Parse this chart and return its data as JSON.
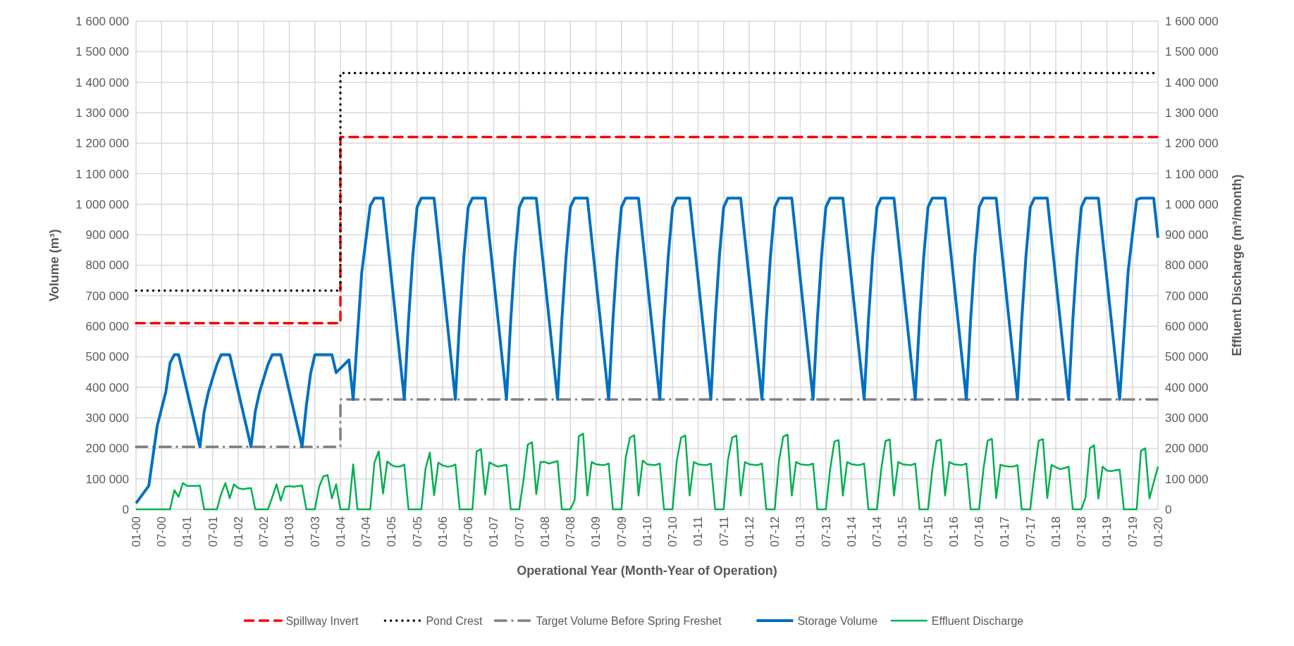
{
  "chart_data": {
    "type": "line",
    "xlabel": "Operational Year (Month-Year of Operation)",
    "ylabel": "Volume (m³)",
    "y2label": "Effluent Discharge (m³/month)",
    "categories": [
      "01-00",
      null,
      null,
      null,
      null,
      null,
      "07-00",
      null,
      null,
      null,
      null,
      null,
      "01-01",
      null,
      null,
      null,
      null,
      null,
      "07-01",
      null,
      null,
      null,
      null,
      null,
      "01-02",
      null,
      null,
      null,
      null,
      null,
      "07-02",
      null,
      null,
      null,
      null,
      null,
      "01-03",
      null,
      null,
      null,
      null,
      null,
      "07-03",
      null,
      null,
      null,
      null,
      null,
      "01-04",
      null,
      null,
      null,
      null,
      null,
      "07-04",
      null,
      null,
      null,
      null,
      null,
      "01-05",
      null,
      null,
      null,
      null,
      null,
      "07-05",
      null,
      null,
      null,
      null,
      null,
      "01-06",
      null,
      null,
      null,
      null,
      null,
      "07-06",
      null,
      null,
      null,
      null,
      null,
      "01-07",
      null,
      null,
      null,
      null,
      null,
      "07-07",
      null,
      null,
      null,
      null,
      null,
      "01-08",
      null,
      null,
      null,
      null,
      null,
      "07-08",
      null,
      null,
      null,
      null,
      null,
      "01-09",
      null,
      null,
      null,
      null,
      null,
      "07-09",
      null,
      null,
      null,
      null,
      null,
      "01-10",
      null,
      null,
      null,
      null,
      null,
      "07-10",
      null,
      null,
      null,
      null,
      null,
      "01-11",
      null,
      null,
      null,
      null,
      null,
      "07-11",
      null,
      null,
      null,
      null,
      null,
      "01-12",
      null,
      null,
      null,
      null,
      null,
      "07-12",
      null,
      null,
      null,
      null,
      null,
      "01-13",
      null,
      null,
      null,
      null,
      null,
      "07-13",
      null,
      null,
      null,
      null,
      null,
      "01-14",
      null,
      null,
      null,
      null,
      null,
      "07-14",
      null,
      null,
      null,
      null,
      null,
      "01-15",
      null,
      null,
      null,
      null,
      null,
      "07-15",
      null,
      null,
      null,
      null,
      null,
      "01-16",
      null,
      null,
      null,
      null,
      null,
      "07-16",
      null,
      null,
      null,
      null,
      null,
      "01-17",
      null,
      null,
      null,
      null,
      null,
      "07-17",
      null,
      null,
      null,
      null,
      null,
      "01-18",
      null,
      null,
      null,
      null,
      null,
      "07-18",
      null,
      null,
      null,
      null,
      null,
      "01-19",
      null,
      null,
      null,
      null,
      null,
      "07-19",
      null,
      null,
      null,
      null,
      null,
      "01-20"
    ],
    "ylim": [
      0,
      1600000
    ],
    "yticks": [
      0,
      {
        "value": 100000,
        "label": "100 000"
      },
      {
        "value": 200000,
        "label": "200 000"
      },
      {
        "value": 300000,
        "label": "300 000"
      },
      {
        "value": 400000,
        "label": "400 000"
      },
      {
        "value": 500000,
        "label": "500 000"
      },
      {
        "value": 600000,
        "label": "600 000"
      },
      {
        "value": 700000,
        "label": "700 000"
      },
      {
        "value": 800000,
        "label": "800 000"
      },
      {
        "value": 900000,
        "label": "900 000"
      },
      {
        "value": 1000000,
        "label": "1 000 000"
      },
      {
        "value": 1100000,
        "label": "1 100 000"
      },
      {
        "value": 1200000,
        "label": "1 200 000"
      },
      {
        "value": 1300000,
        "label": "1 300 000"
      },
      {
        "value": 1400000,
        "label": "1 400 000"
      },
      {
        "value": 1500000,
        "label": "1 500 000"
      },
      {
        "value": 1600000,
        "label": "1 600 000"
      }
    ],
    "y2lim": [
      0,
      1600000
    ],
    "y2ticks": [
      0,
      {
        "value": 100000,
        "label": "100 000"
      },
      {
        "value": 200000,
        "label": "200 000"
      },
      {
        "value": 300000,
        "label": "300 000"
      },
      {
        "value": 400000,
        "label": "400 000"
      },
      {
        "value": 500000,
        "label": "500 000"
      },
      {
        "value": 600000,
        "label": "600 000"
      },
      {
        "value": 700000,
        "label": "700 000"
      },
      {
        "value": 800000,
        "label": "800 000"
      },
      {
        "value": 900000,
        "label": "900 000"
      },
      {
        "value": 1000000,
        "label": "1 000 000"
      },
      {
        "value": 1100000,
        "label": "1 100 000"
      },
      {
        "value": 1200000,
        "label": "1 200 000"
      },
      {
        "value": 1300000,
        "label": "1 300 000"
      },
      {
        "value": 1400000,
        "label": "1 400 000"
      },
      {
        "value": 1500000,
        "label": "1 500 000"
      },
      {
        "value": 1600000,
        "label": "1 600 000"
      }
    ],
    "grid": true,
    "legend": "bottom",
    "series": [
      {
        "name": "Spillway Invert",
        "color": "#ff0000",
        "line_style": "dashed",
        "x": [
          "01-00",
          "01-04",
          "01-04",
          "01-20"
        ],
        "values": [
          610000,
          610000,
          1220000,
          1220000
        ]
      },
      {
        "name": "Pond Crest",
        "color": "#000000",
        "line_style": "dotted",
        "x": [
          "01-00",
          "01-04",
          "01-04",
          "01-20"
        ],
        "values": [
          717000,
          717000,
          1430000,
          1430000
        ]
      },
      {
        "name": "Target Volume Before Spring Freshet",
        "color": "#808080",
        "line_style": "dashdot",
        "x": [
          "01-00",
          "01-04",
          "01-04",
          "01-20"
        ],
        "values": [
          205000,
          205000,
          360000,
          360000
        ]
      },
      {
        "name": "Storage Volume",
        "color": "#0070c0",
        "line_style": "solid",
        "values": [
          20000,
          39000,
          58000,
          77000,
          176000,
          275000,
          330000,
          385000,
          480000,
          507000,
          507000,
          447000,
          386000,
          326000,
          266000,
          205000,
          320000,
          384000,
          430000,
          475000,
          507000,
          507000,
          507000,
          447000,
          386000,
          326000,
          266000,
          205000,
          320000,
          384000,
          430000,
          475000,
          507000,
          507000,
          507000,
          447000,
          386000,
          326000,
          266000,
          205000,
          340000,
          445000,
          507000,
          507000,
          507000,
          507000,
          507000,
          448000,
          462000,
          476000,
          490000,
          360000,
          570000,
          775000,
          885000,
          995000,
          1020000,
          1020000,
          1020000,
          888000,
          756000,
          624000,
          492000,
          360000,
          620000,
          830000,
          990000,
          1020000,
          1020000,
          1020000,
          1020000,
          888000,
          756000,
          624000,
          492000,
          360000,
          620000,
          830000,
          990000,
          1020000,
          1020000,
          1020000,
          1020000,
          888000,
          756000,
          624000,
          492000,
          360000,
          620000,
          830000,
          990000,
          1020000,
          1020000,
          1020000,
          1020000,
          888000,
          756000,
          624000,
          492000,
          360000,
          620000,
          830000,
          990000,
          1020000,
          1020000,
          1020000,
          1020000,
          888000,
          756000,
          624000,
          492000,
          360000,
          620000,
          830000,
          990000,
          1020000,
          1020000,
          1020000,
          1020000,
          888000,
          756000,
          624000,
          492000,
          360000,
          620000,
          830000,
          990000,
          1020000,
          1020000,
          1020000,
          1020000,
          888000,
          756000,
          624000,
          492000,
          360000,
          620000,
          830000,
          990000,
          1020000,
          1020000,
          1020000,
          1020000,
          888000,
          756000,
          624000,
          492000,
          360000,
          620000,
          830000,
          990000,
          1020000,
          1020000,
          1020000,
          1020000,
          888000,
          756000,
          624000,
          492000,
          360000,
          620000,
          830000,
          990000,
          1020000,
          1020000,
          1020000,
          1020000,
          888000,
          756000,
          624000,
          492000,
          360000,
          620000,
          830000,
          990000,
          1020000,
          1020000,
          1020000,
          1020000,
          888000,
          756000,
          624000,
          492000,
          360000,
          620000,
          830000,
          990000,
          1020000,
          1020000,
          1020000,
          1020000,
          888000,
          756000,
          624000,
          492000,
          360000,
          620000,
          830000,
          990000,
          1020000,
          1020000,
          1020000,
          1020000,
          888000,
          756000,
          624000,
          492000,
          360000,
          620000,
          830000,
          990000,
          1020000,
          1020000,
          1020000,
          1020000,
          888000,
          756000,
          624000,
          492000,
          360000,
          620000,
          830000,
          990000,
          1020000,
          1020000,
          1020000,
          1020000,
          888000,
          756000,
          624000,
          492000,
          360000,
          570000,
          780000,
          900000,
          1015000,
          1020000,
          1020000,
          1020000,
          1020000,
          890000
        ]
      },
      {
        "name": "Effluent Discharge",
        "color": "#00b050",
        "line_style": "solid",
        "axis": "y2",
        "values": [
          0,
          0,
          0,
          0,
          0,
          0,
          0,
          0,
          0,
          63000,
          41000,
          86000,
          77000,
          77000,
          77000,
          78000,
          0,
          0,
          0,
          0,
          51000,
          86000,
          36000,
          82000,
          70000,
          66000,
          68000,
          70000,
          0,
          0,
          0,
          0,
          40000,
          82000,
          29000,
          74000,
          76000,
          74000,
          76000,
          78000,
          0,
          0,
          0,
          74000,
          108000,
          112000,
          36000,
          82000,
          0,
          0,
          0,
          147000,
          0,
          0,
          0,
          0,
          154000,
          190000,
          52000,
          157000,
          145000,
          140000,
          140000,
          147000,
          0,
          0,
          0,
          0,
          134000,
          186000,
          46000,
          153000,
          144000,
          140000,
          141000,
          147000,
          0,
          0,
          0,
          0,
          190000,
          197000,
          48000,
          154000,
          146000,
          140000,
          143000,
          146000,
          0,
          0,
          0,
          96000,
          212000,
          220000,
          50000,
          155000,
          155000,
          150000,
          154000,
          158000,
          0,
          0,
          0,
          30000,
          240000,
          248000,
          45000,
          155000,
          148000,
          146000,
          145000,
          150000,
          0,
          0,
          0,
          170000,
          235000,
          243000,
          45000,
          160000,
          148000,
          146000,
          145000,
          150000,
          0,
          0,
          0,
          160000,
          235000,
          242000,
          45000,
          155000,
          148000,
          146000,
          145000,
          150000,
          0,
          0,
          0,
          160000,
          235000,
          242000,
          45000,
          155000,
          148000,
          146000,
          145000,
          150000,
          0,
          0,
          0,
          160000,
          238000,
          245000,
          45000,
          155000,
          148000,
          146000,
          145000,
          150000,
          0,
          0,
          0,
          130000,
          222000,
          227000,
          45000,
          155000,
          148000,
          146000,
          145000,
          150000,
          0,
          0,
          0,
          130000,
          224000,
          229000,
          45000,
          155000,
          148000,
          146000,
          145000,
          150000,
          0,
          0,
          0,
          130000,
          224000,
          229000,
          45000,
          155000,
          148000,
          146000,
          145000,
          150000,
          0,
          0,
          0,
          130000,
          225000,
          231000,
          37000,
          146000,
          142000,
          140000,
          140000,
          145000,
          0,
          0,
          0,
          120000,
          225000,
          230000,
          37000,
          145000,
          138000,
          132000,
          135000,
          140000,
          0,
          0,
          0,
          40000,
          200000,
          210000,
          35000,
          140000,
          127000,
          125000,
          128000,
          130000,
          0,
          0,
          0,
          0,
          192000,
          200000,
          36000,
          88000,
          140000
        ]
      }
    ]
  }
}
